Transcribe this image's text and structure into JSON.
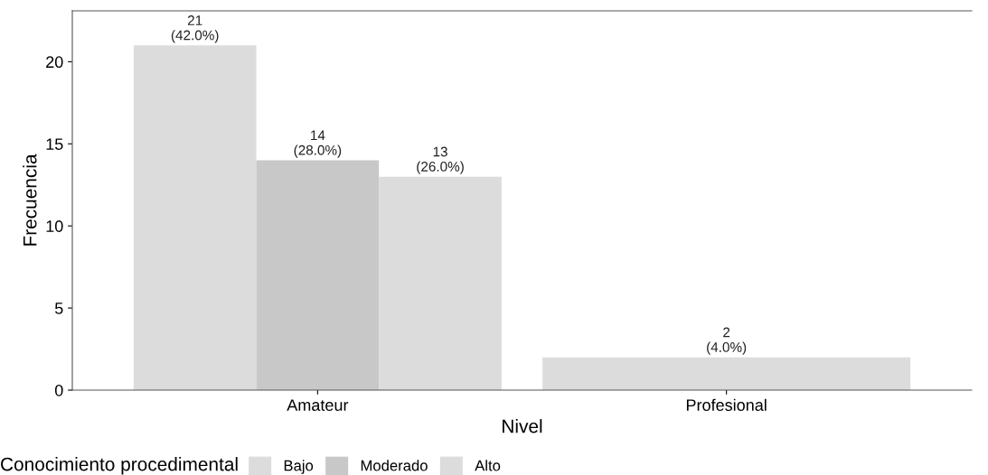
{
  "chart_data": {
    "type": "bar",
    "xlabel": "Nivel",
    "ylabel": "Frecuencia",
    "legend_title": "Conocimiento procedimental",
    "legend": "bottom",
    "grid": false,
    "categories": [
      "Amateur",
      "Profesional"
    ],
    "series": [
      {
        "name": "Bajo",
        "color": "#dcdcdc",
        "values": [
          21,
          null
        ],
        "value_labels": [
          "21\n(42.0%)",
          null
        ]
      },
      {
        "name": "Moderado",
        "color": "#c8c8c8",
        "values": [
          14,
          null
        ],
        "value_labels": [
          "14\n(28.0%)",
          null
        ]
      },
      {
        "name": "Alto",
        "color": "#dcdcdc",
        "values": [
          13,
          2
        ],
        "value_labels": [
          "13\n(26.0%)",
          "2\n(4.0%)"
        ]
      }
    ],
    "ylim": [
      0,
      23.1
    ],
    "yticks": [
      0,
      5,
      10,
      15,
      20
    ]
  }
}
